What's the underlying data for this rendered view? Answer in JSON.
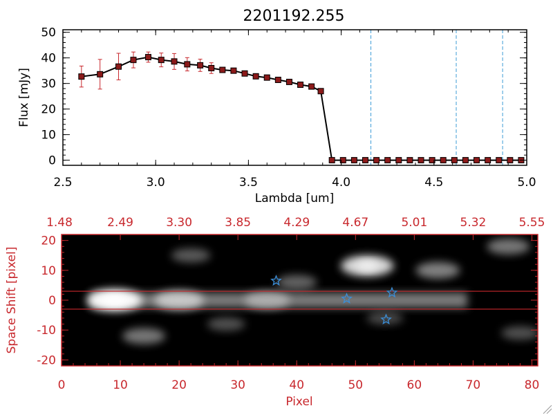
{
  "chart_data": [
    {
      "type": "line",
      "title": "2201192.255",
      "xlabel": "Lambda [um]",
      "ylabel": "Flux [mJy]",
      "xlim": [
        2.5,
        5.0
      ],
      "ylim": [
        -2,
        51
      ],
      "xticks": [
        "2.5",
        "3.0",
        "3.5",
        "4.0",
        "4.5",
        "5.0"
      ],
      "yticks": [
        "0",
        "10",
        "20",
        "30",
        "40",
        "50"
      ],
      "xtick_values": [
        2.5,
        3.0,
        3.5,
        4.0,
        4.5,
        5.0
      ],
      "ytick_values": [
        0,
        10,
        20,
        30,
        40,
        50
      ],
      "grid": false,
      "series": [
        {
          "x": [
            2.6,
            2.7,
            2.8,
            2.88,
            2.96,
            3.03,
            3.1,
            3.17,
            3.24,
            3.3,
            3.36,
            3.42,
            3.48,
            3.54,
            3.6,
            3.66,
            3.72,
            3.78,
            3.84,
            3.89
          ],
          "y": [
            32.7,
            33.6,
            36.6,
            39.2,
            40.3,
            39.2,
            38.6,
            37.5,
            37.1,
            36.0,
            35.3,
            35.0,
            33.9,
            32.8,
            32.3,
            31.4,
            30.6,
            29.5,
            28.8,
            27.0
          ],
          "yerr": [
            4.1,
            5.8,
            5.2,
            3.1,
            2.0,
            2.7,
            3.1,
            2.6,
            2.4,
            2.1,
            0.8,
            0.6,
            0.5,
            0.5,
            0.4,
            0.4,
            0.4,
            0.4,
            0.3,
            0.3
          ]
        },
        {
          "x": [
            3.95,
            4.01,
            4.07,
            4.13,
            4.19,
            4.25,
            4.31,
            4.37,
            4.43,
            4.49,
            4.55,
            4.61,
            4.67,
            4.73,
            4.79,
            4.85,
            4.91,
            4.97
          ],
          "y": [
            0,
            0,
            0,
            0,
            0,
            0,
            0,
            0,
            0,
            0,
            0,
            0,
            0,
            0,
            0,
            0,
            0,
            0
          ]
        }
      ],
      "vertical_lines": [
        4.16,
        4.62,
        4.87
      ]
    },
    {
      "type": "heatmap",
      "xlabel": "Pixel",
      "ylabel": "Space Shift [pixel]",
      "xlim": [
        0,
        81
      ],
      "ylim": [
        -22,
        22
      ],
      "xticks": [
        "0",
        "10",
        "20",
        "30",
        "40",
        "50",
        "60",
        "70",
        "80"
      ],
      "yticks": [
        "-20",
        "-10",
        "0",
        "10",
        "20"
      ],
      "xtick_values": [
        0,
        10,
        20,
        30,
        40,
        50,
        60,
        70,
        80
      ],
      "ytick_values": [
        -20,
        -10,
        0,
        10,
        20
      ],
      "top_ticks": [
        "1.48",
        "2.49",
        "3.30",
        "3.85",
        "4.29",
        "4.67",
        "5.01",
        "5.32",
        "5.55"
      ],
      "colormap": "grayscale",
      "aperture_lines": [
        3,
        -3
      ],
      "blobs": [
        {
          "x": 9,
          "y": 0,
          "brightness": 1.0
        },
        {
          "x": 20,
          "y": 0,
          "brightness": 0.75
        },
        {
          "x": 35,
          "y": 0,
          "brightness": 0.6
        },
        {
          "x": 52,
          "y": 11.5,
          "brightness": 0.9
        },
        {
          "x": 64,
          "y": 10,
          "brightness": 0.55
        },
        {
          "x": 76,
          "y": 18,
          "brightness": 0.5
        },
        {
          "x": 14,
          "y": -12,
          "brightness": 0.5
        },
        {
          "x": 22,
          "y": 15,
          "brightness": 0.35
        },
        {
          "x": 40,
          "y": 6,
          "brightness": 0.4
        },
        {
          "x": 28,
          "y": -8,
          "brightness": 0.3
        },
        {
          "x": 55,
          "y": -6,
          "brightness": 0.25
        },
        {
          "x": 78,
          "y": -11,
          "brightness": 0.3
        }
      ],
      "stars": [
        {
          "x": 36.5,
          "y": 6.5
        },
        {
          "x": 48.5,
          "y": 0.5
        },
        {
          "x": 56.2,
          "y": 2.5
        },
        {
          "x": 55.2,
          "y": -6.5
        }
      ]
    }
  ],
  "colors": {
    "axis": "#000000",
    "heatmap_axis": "#c8282d",
    "errorbar": "#c8282d",
    "marker_fill": "#8b1a1a",
    "vline": "#3b9bd6",
    "star": "#3b8fd9",
    "aperture": "#c8282d"
  }
}
